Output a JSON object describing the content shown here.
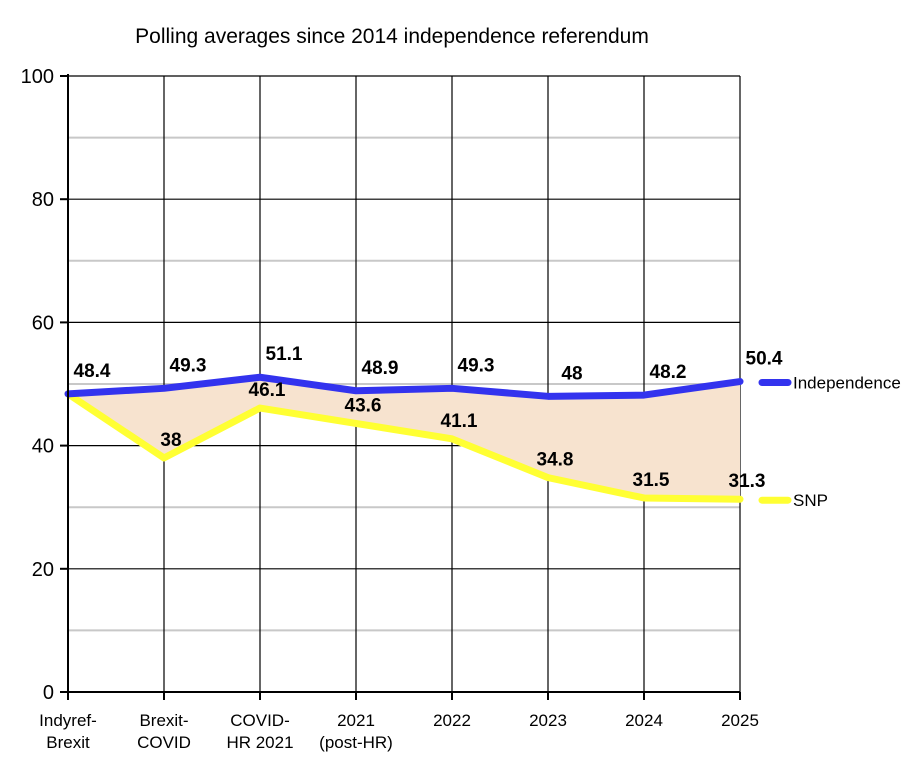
{
  "chart_data": {
    "type": "line",
    "title": "Polling averages since 2014 independence referendum",
    "xlabel": "",
    "ylabel": "",
    "ylim": [
      0,
      100
    ],
    "yticks": [
      0,
      20,
      40,
      60,
      80,
      100
    ],
    "minor_gridlines": [
      10,
      30,
      50,
      70,
      90
    ],
    "categories": [
      [
        "Indyref-",
        "Brexit"
      ],
      [
        "Brexit-",
        "COVID"
      ],
      [
        "COVID-",
        "HR 2021"
      ],
      [
        "2021",
        "(post-HR)"
      ],
      [
        "2022"
      ],
      [
        "2023"
      ],
      [
        "2024"
      ],
      [
        "2025"
      ]
    ],
    "series": [
      {
        "name": "Independence",
        "color": "#3333ee",
        "values": [
          48.4,
          49.3,
          51.1,
          48.9,
          49.3,
          48,
          48.2,
          50.4
        ],
        "labels": [
          "48.4",
          "49.3",
          "51.1",
          "48.9",
          "49.3",
          "48",
          "48.2",
          "50.4"
        ]
      },
      {
        "name": "SNP",
        "color": "#ffff33",
        "values": [
          48.4,
          38,
          46.1,
          43.6,
          41.1,
          34.8,
          31.5,
          31.3
        ],
        "labels": [
          "48.4",
          "38",
          "46.1",
          "43.6",
          "41.1",
          "34.8",
          "31.5",
          "31.3"
        ]
      }
    ],
    "fill_between": {
      "color": "#f7e3cf"
    },
    "legend": "right",
    "grid": true
  }
}
